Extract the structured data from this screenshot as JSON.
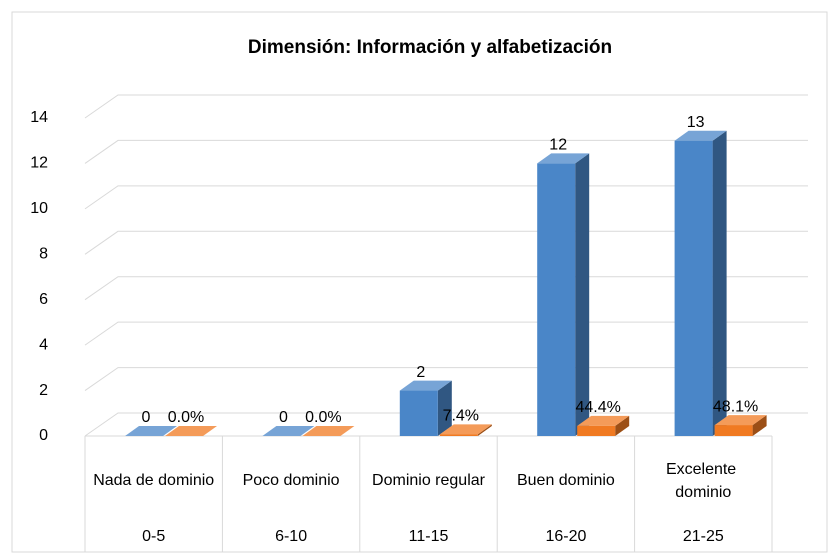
{
  "chart_data": {
    "type": "bar3d",
    "title": "Dimensión: Información y alfabetización",
    "categories": [
      "Nada de dominio",
      "Poco dominio",
      "Dominio regular",
      "Buen dominio",
      "Excelente dominio"
    ],
    "category_ranges": [
      "0-5",
      "6-10",
      "11-15",
      "16-20",
      "21-25"
    ],
    "series": [
      {
        "color": "#4a86c8",
        "values": [
          0,
          0,
          2,
          12,
          13
        ]
      },
      {
        "color": "#f07a22",
        "values": [
          0,
          0,
          0.074,
          0.444,
          0.481
        ],
        "value_labels": [
          "0.0%",
          "0.0%",
          "7.4%",
          "44.4%",
          "48.1%"
        ]
      }
    ],
    "ylim": [
      0,
      14
    ],
    "yticks": [
      0,
      2,
      4,
      6,
      8,
      10,
      12,
      14
    ],
    "grid": true
  }
}
